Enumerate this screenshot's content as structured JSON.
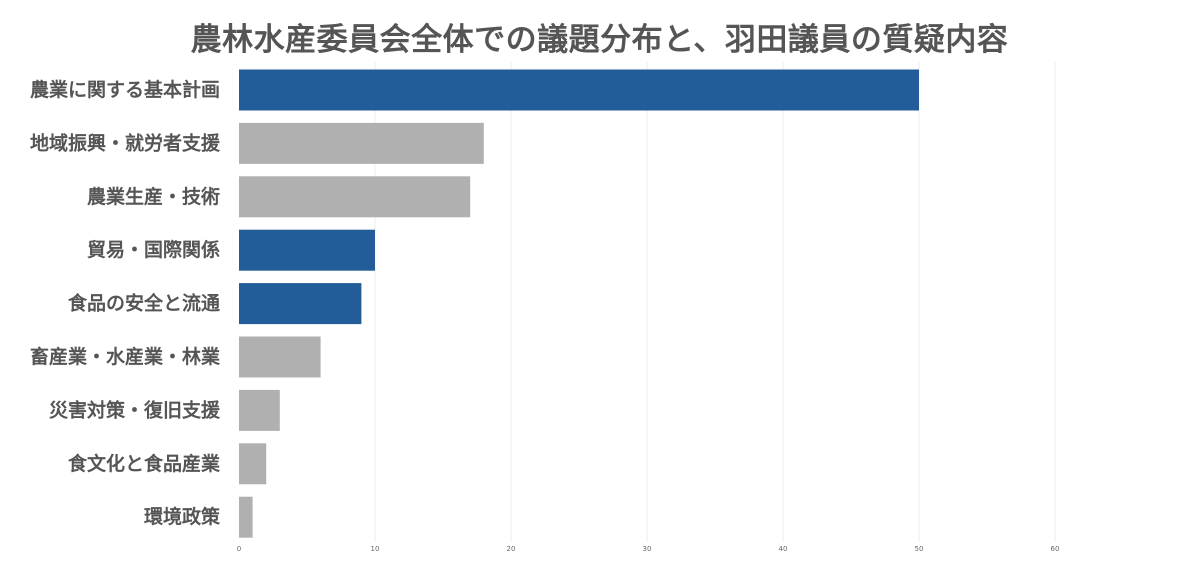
{
  "chart_data": {
    "type": "bar",
    "orientation": "horizontal",
    "title": "農林水産委員会全体での議題分布と、羽田議員の質疑内容",
    "xlabel": "",
    "ylabel": "",
    "categories": [
      "農業に関する基本計画",
      "地域振興・就労者支援",
      "農業生産・技術",
      "貿易・国際関係",
      "食品の安全と流通",
      "畜産業・水産業・林業",
      "災害対策・復旧支援",
      "食文化と食品産業",
      "環境政策"
    ],
    "values": [
      50,
      18,
      17,
      10,
      9,
      6,
      3,
      2,
      1
    ],
    "highlighted": [
      true,
      false,
      false,
      true,
      true,
      false,
      false,
      false,
      false
    ],
    "colors": {
      "highlight": "#225d9a",
      "default": "#b0b0b0",
      "grid": "#ececec"
    },
    "xlim": [
      0,
      60
    ],
    "xticks": [
      0,
      10,
      20,
      30,
      40,
      50,
      60
    ],
    "grid": true,
    "legend": "none"
  }
}
